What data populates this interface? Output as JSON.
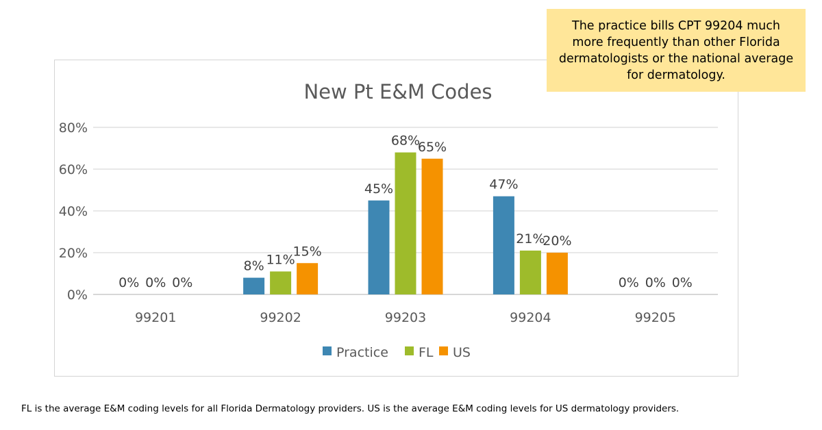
{
  "callout": {
    "text": "The practice bills CPT 99204 much more frequently than other Florida dermatologists or the national average for dermatology."
  },
  "footnote": "FL is the average E&M coding levels for all Florida Dermatology providers.  US is the average E&M coding levels for US dermatology providers.",
  "chart_data": {
    "type": "bar",
    "title": "New Pt E&M Codes",
    "xlabel": "",
    "ylabel": "",
    "categories": [
      "99201",
      "99202",
      "99203",
      "99204",
      "99205"
    ],
    "series": [
      {
        "name": "Practice",
        "color": "#3e87b3",
        "values": [
          0,
          8,
          45,
          47,
          0
        ],
        "labels": [
          "0%",
          "8%",
          "45%",
          "47%",
          "0%"
        ]
      },
      {
        "name": "FL",
        "color": "#9ebb2b",
        "values": [
          0,
          11,
          68,
          21,
          0
        ],
        "labels": [
          "0%",
          "11%",
          "68%",
          "21%",
          "0%"
        ]
      },
      {
        "name": "US",
        "color": "#f59200",
        "values": [
          0,
          15,
          65,
          20,
          0
        ],
        "labels": [
          "0%",
          "15%",
          "65%",
          "20%",
          "0%"
        ]
      }
    ],
    "ylim": [
      0,
      80
    ],
    "yticks": [
      0,
      20,
      40,
      60,
      80
    ],
    "ytick_labels": [
      "0%",
      "20%",
      "40%",
      "60%",
      "80%"
    ],
    "grid": true,
    "legend": "bottom"
  }
}
